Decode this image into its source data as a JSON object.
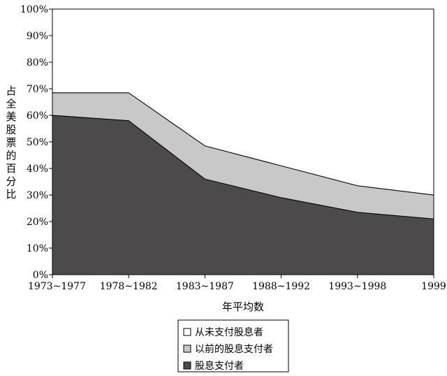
{
  "chart_data": {
    "type": "area",
    "stacked": true,
    "categories": [
      "1973~1977",
      "1978~1982",
      "1983~1987",
      "1988~1992",
      "1993~1998",
      "1999"
    ],
    "series": [
      {
        "name": "股息支付者",
        "values": [
          60,
          58,
          36,
          29,
          23.5,
          21
        ],
        "color": "#4d4a4b"
      },
      {
        "name": "以前的股息支付者",
        "values": [
          8.5,
          10.5,
          12.5,
          12,
          10,
          9
        ],
        "color": "#c8c8c8"
      },
      {
        "name": "从未支付股息者",
        "values": [
          31.5,
          31.5,
          51.5,
          59,
          66.5,
          70
        ],
        "color": "#ffffff"
      }
    ],
    "yticks": [
      "0%",
      "10%",
      "20%",
      "30%",
      "40%",
      "50%",
      "60%",
      "70%",
      "80%",
      "90%",
      "100%"
    ],
    "ylim": [
      0,
      100
    ],
    "xlabel": "年平均数",
    "ylabel": "占全美股票的百分比",
    "legend_position": "bottom-center",
    "legend": [
      "从未支付股息者",
      "以前的股息支付者",
      "股息支付者"
    ],
    "grid": false
  }
}
